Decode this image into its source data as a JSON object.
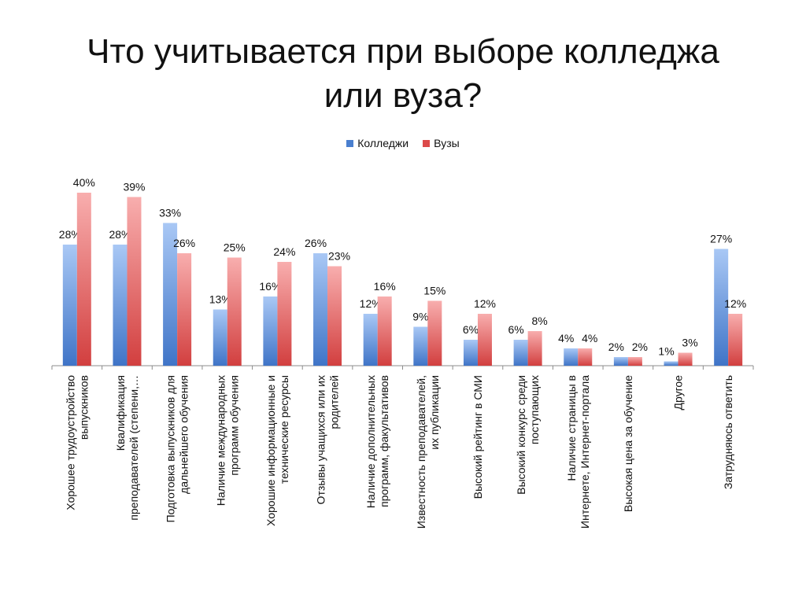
{
  "slide": {
    "title_line1": "Что учитывается при выборе колледжа",
    "title_line2": "или вуза?"
  },
  "legend": [
    {
      "name": "Колледжи",
      "color": "#4a7fcf"
    },
    {
      "name": "Вузы",
      "color": "#dc4a4a"
    }
  ],
  "chart_data": {
    "type": "bar",
    "title": "",
    "xlabel": "",
    "ylabel": "",
    "ylim": [
      0,
      40
    ],
    "grid": false,
    "legend_position": "top",
    "value_suffix": "%",
    "categories": [
      [
        "Хорошее трудоустройство",
        "выпускников"
      ],
      [
        "Квалификация",
        "преподавателей (степени,…"
      ],
      [
        "Подготовка выпускников для",
        "дальнейшего обучения"
      ],
      [
        "Наличие международных",
        "программ обучения"
      ],
      [
        "Хорошие информационные и",
        "технические ресурсы"
      ],
      [
        "Отзывы учащихся или их",
        "родителей"
      ],
      [
        "Наличие дополнительных",
        "программ, факультативов"
      ],
      [
        "Известность преподавателей,",
        "их публикации"
      ],
      [
        "Высокий рейтинг в СМИ"
      ],
      [
        "Высокий конкурс среди",
        "поступающих"
      ],
      [
        "Наличие страницы в",
        "Интернете, Интернет-портала"
      ],
      [
        "Высокая цена за обучение"
      ],
      [
        "Другое"
      ],
      [
        "Затрудняюсь ответить"
      ]
    ],
    "series": [
      {
        "name": "Колледжи",
        "color_light": "#a9c8f5",
        "color_dark": "#3f74c7",
        "values": [
          28,
          28,
          33,
          13,
          16,
          26,
          12,
          9,
          6,
          6,
          4,
          2,
          1,
          27
        ]
      },
      {
        "name": "Вузы",
        "color_light": "#f8aeae",
        "color_dark": "#d23f3f",
        "values": [
          40,
          39,
          26,
          25,
          24,
          23,
          16,
          15,
          12,
          8,
          4,
          2,
          3,
          12
        ]
      }
    ]
  }
}
